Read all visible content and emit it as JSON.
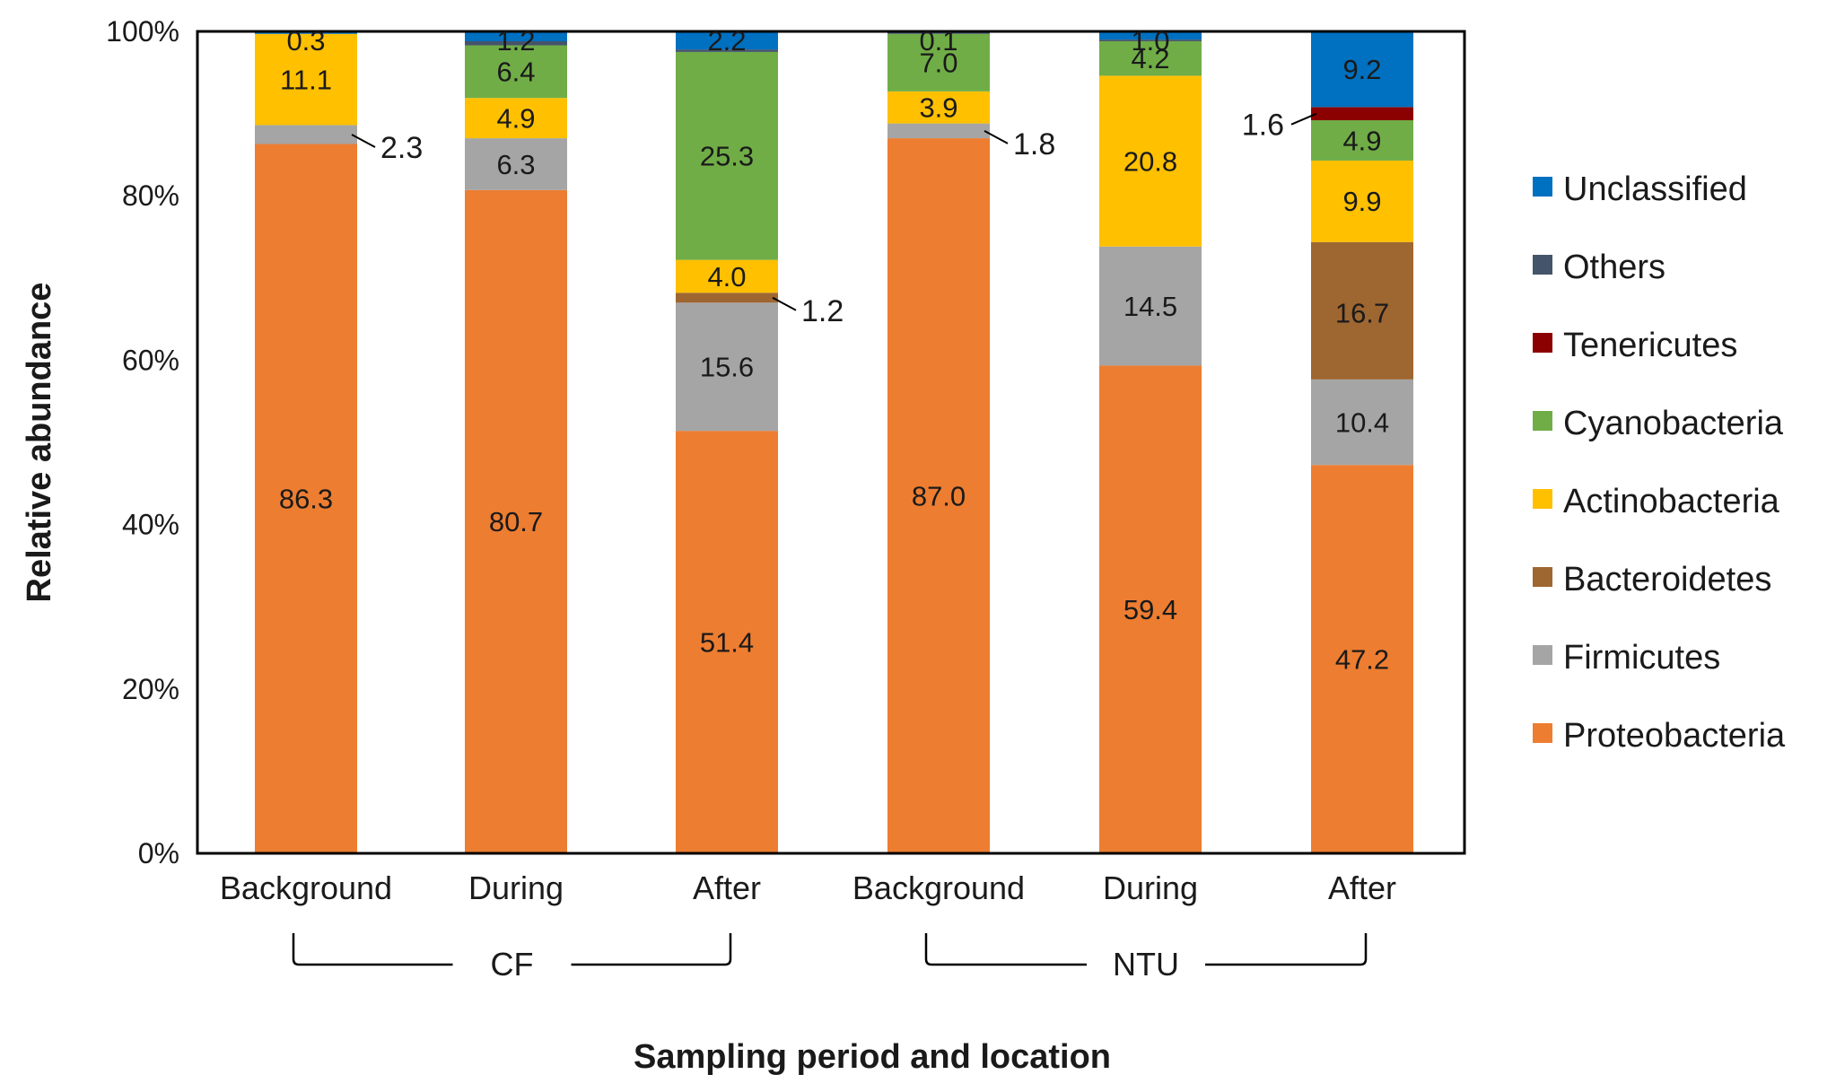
{
  "chart_data": {
    "type": "bar",
    "stacked": true,
    "percent": true,
    "xlabel": "Sampling period and location",
    "ylabel": "Relative abundance",
    "ylim": [
      0,
      100
    ],
    "yticks": [
      "0%",
      "20%",
      "40%",
      "60%",
      "80%",
      "100%"
    ],
    "categories": [
      "Background",
      "During",
      "After",
      "Background",
      "During",
      "After"
    ],
    "groups": [
      {
        "label": "CF",
        "categories": [
          0,
          1,
          2
        ]
      },
      {
        "label": "NTU",
        "categories": [
          3,
          4,
          5
        ]
      }
    ],
    "legend_position": "right",
    "series": [
      {
        "name": "Proteobacteria",
        "color": "#ED7D31",
        "values": [
          86.3,
          80.7,
          51.4,
          87.0,
          59.4,
          47.2
        ],
        "labels": [
          "86.3",
          "80.7",
          "51.4",
          "87.0",
          "59.4",
          "47.2"
        ]
      },
      {
        "name": "Firmicutes",
        "color": "#A5A5A5",
        "values": [
          2.3,
          6.3,
          15.6,
          1.8,
          14.5,
          10.4
        ],
        "labels": [
          "2.3",
          "6.3",
          "15.6",
          "1.8",
          "14.5",
          "10.4"
        ]
      },
      {
        "name": "Bacteroidetes",
        "color": "#9E6631",
        "values": [
          0,
          0,
          1.2,
          0,
          0,
          16.7
        ],
        "labels": [
          "",
          "",
          "1.2",
          "",
          "",
          "16.7"
        ]
      },
      {
        "name": "Actinobacteria",
        "color": "#FFC000",
        "values": [
          11.1,
          4.9,
          4.0,
          3.9,
          20.8,
          9.9
        ],
        "labels": [
          "11.1",
          "4.9",
          "4.0",
          "3.9",
          "20.8",
          "9.9"
        ]
      },
      {
        "name": "Cyanobacteria",
        "color": "#70AD47",
        "values": [
          0,
          6.4,
          25.3,
          7.0,
          4.2,
          4.9
        ],
        "labels": [
          "",
          "6.4",
          "25.3",
          "7.0",
          "4.2",
          "4.9"
        ]
      },
      {
        "name": "Tenericutes",
        "color": "#8B0000",
        "values": [
          0,
          0,
          0,
          0,
          0,
          1.6
        ],
        "labels": [
          "",
          "",
          "",
          "",
          "",
          "1.6"
        ]
      },
      {
        "name": "Others",
        "color": "#44546A",
        "values": [
          0,
          0.5,
          0.3,
          0.2,
          0.2,
          0
        ],
        "labels": [
          "",
          "",
          "",
          "",
          "",
          ""
        ]
      },
      {
        "name": "Unclassified",
        "color": "#0070C0",
        "values": [
          0.3,
          1.2,
          2.2,
          0.1,
          1.0,
          9.2
        ],
        "labels": [
          "0.3",
          "1.2",
          "2.2",
          "0.1",
          "1.0",
          "9.2"
        ]
      }
    ],
    "callouts": [
      {
        "category": 0,
        "series": "Firmicutes",
        "label": "2.3",
        "side": "right"
      },
      {
        "category": 2,
        "series": "Bacteroidetes",
        "label": "1.2",
        "side": "right"
      },
      {
        "category": 3,
        "series": "Firmicutes",
        "label": "1.8",
        "side": "right"
      },
      {
        "category": 5,
        "series": "Tenericutes",
        "label": "1.6",
        "side": "left"
      }
    ],
    "legend": [
      "Unclassified",
      "Others",
      "Tenericutes",
      "Cyanobacteria",
      "Actinobacteria",
      "Bacteroidetes",
      "Firmicutes",
      "Proteobacteria"
    ]
  }
}
